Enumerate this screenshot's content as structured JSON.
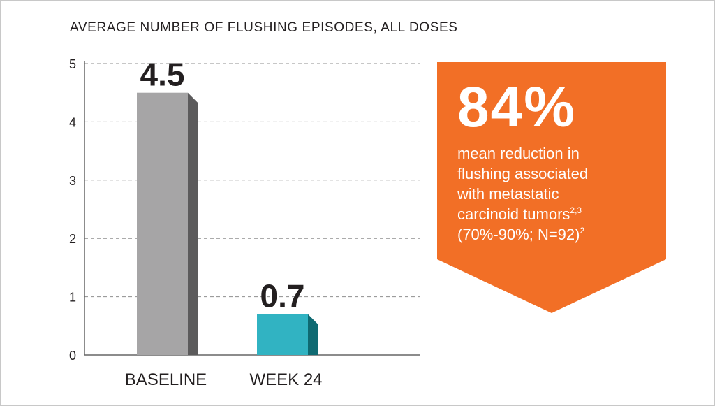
{
  "chart_data": {
    "type": "bar",
    "title": "AVERAGE NUMBER OF FLUSHING EPISODES, ALL DOSES",
    "categories": [
      "BASELINE",
      "WEEK 24"
    ],
    "values": [
      4.5,
      0.7
    ],
    "value_labels": [
      "4.5",
      "0.7"
    ],
    "y_ticks": [
      "0",
      "1",
      "2",
      "3",
      "4",
      "5"
    ],
    "ylim": [
      0,
      5
    ],
    "grid": true,
    "bar_colors": [
      "#a6a5a6",
      "#31b3c2"
    ],
    "bar_side_colors": [
      "#5c5b5c",
      "#0f6a72"
    ]
  },
  "callout": {
    "headline": "84%",
    "lines": [
      "mean reduction in",
      "flushing associated",
      "with metastatic",
      "carcinoid tumors"
    ],
    "line4_sup": "2,3",
    "line5": "(70%-90%; N=92)",
    "line5_sup": "2",
    "color": "#f26f26"
  }
}
